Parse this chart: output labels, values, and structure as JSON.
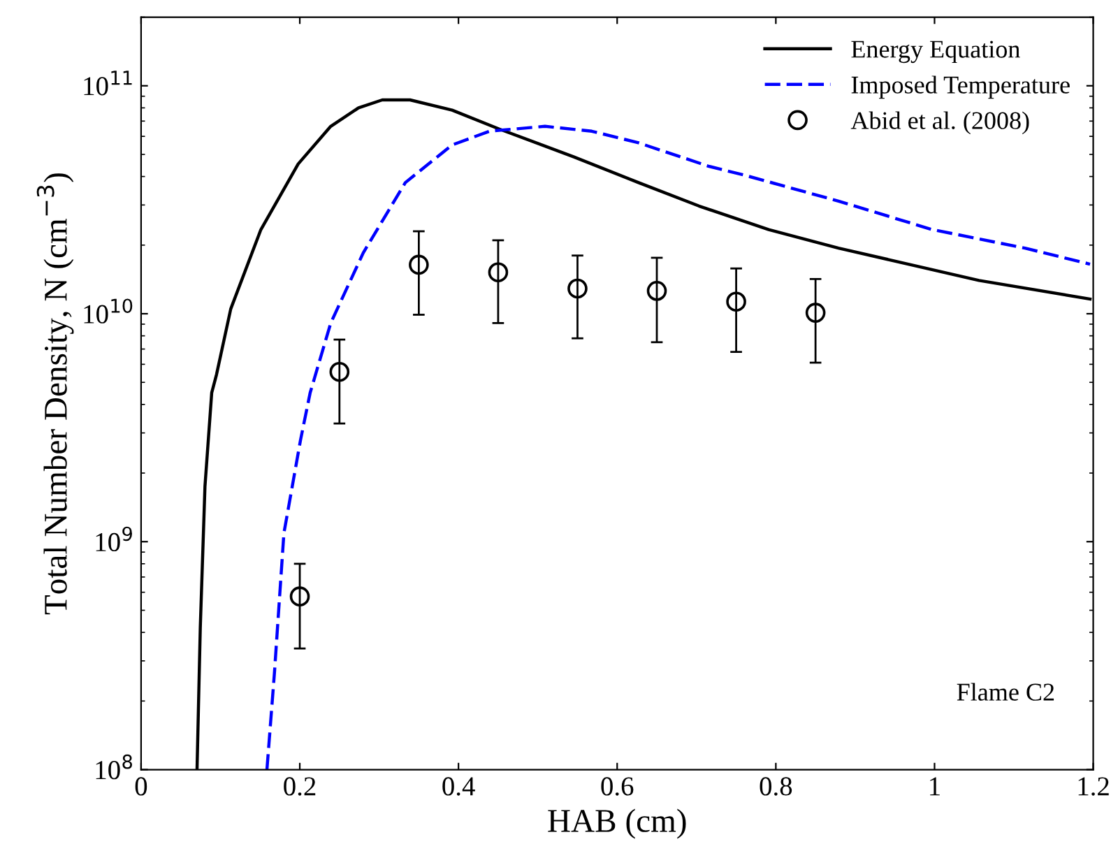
{
  "chart_data": {
    "type": "line",
    "xlabel": "HAB (cm)",
    "ylabel": "Total Number Density, N (cm$^{−3}$)",
    "xlim": [
      0,
      1.2
    ],
    "xticks": [
      0,
      0.2,
      0.4,
      0.6,
      0.8,
      1,
      1.2
    ],
    "ylim": [
      100000000.0,
      200000000000.0
    ],
    "yticks": [
      {
        "value": 100000000.0,
        "label": "10$^{8}$"
      },
      {
        "value": 1000000000.0,
        "label": "10$^{9}$"
      },
      {
        "value": 10000000000.0,
        "label": "10$^{10}$"
      },
      {
        "value": 100000000000.0,
        "label": "10$^{11}$"
      }
    ],
    "log": "y",
    "grid": false,
    "legend": "top right",
    "annotations": [
      "Flame C2"
    ],
    "series": [
      {
        "name": "Energy Equation",
        "color": "#000000",
        "line_style": "solid",
        "marker": "none",
        "x": [
          0.0705,
          0.0746,
          0.0805,
          0.089,
          0.095,
          0.113,
          0.151,
          0.198,
          0.239,
          0.274,
          0.304,
          0.339,
          0.392,
          0.451,
          0.545,
          0.627,
          0.703,
          0.791,
          0.879,
          0.967,
          1.056,
          1.196
        ],
        "values": [
          100000000.0,
          420000000.0,
          1750000000.0,
          4500000000.0,
          5400000000.0,
          10500000000.0,
          23400000000.0,
          45400000000.0,
          66400000000.0,
          80000000000.0,
          86700000000.0,
          86700000000.0,
          78200000000.0,
          64700000000.0,
          48800000000.0,
          37600000000.0,
          29700000000.0,
          23400000000.0,
          19400000000.0,
          16500000000.0,
          14000000000.0,
          11600000000.0
        ]
      },
      {
        "name": "Imposed Temperature",
        "color": "#0000ff",
        "line_style": "dashed",
        "marker": "none",
        "x": [
          0.1586,
          0.168,
          0.18,
          0.201,
          0.213,
          0.239,
          0.28,
          0.333,
          0.392,
          0.439,
          0.509,
          0.568,
          0.627,
          0.715,
          0.762,
          0.879,
          0.997,
          1.114,
          1.196
        ],
        "values": [
          100000000.0,
          264000000.0,
          1090000000.0,
          2800000000.0,
          4490000000.0,
          9100000000.0,
          18500000000.0,
          37600000000.0,
          55000000000.0,
          63200000000.0,
          66400000000.0,
          63200000000.0,
          56200000000.0,
          44400000000.0,
          40400000000.0,
          31200000000.0,
          23400000000.0,
          19400000000.0,
          16500000000.0
        ]
      },
      {
        "name": "Abid et al. (2008)",
        "type": "scatter",
        "color": "#000000",
        "marker": "circle",
        "x": [
          0.2,
          0.25,
          0.35,
          0.45,
          0.55,
          0.65,
          0.75,
          0.85
        ],
        "values": [
          575000000.0,
          5560000000.0,
          16400000000.0,
          15200000000.0,
          12900000000.0,
          12600000000.0,
          11300000000.0,
          10100000000.0
        ],
        "errors": [
          [
            340000000.0,
            800000000.0
          ],
          [
            3300000000.0,
            7700000000.0
          ],
          [
            9900000000.0,
            23000000000.0
          ],
          [
            9100000000.0,
            21000000000.0
          ],
          [
            7800000000.0,
            18000000000.0
          ],
          [
            7500000000.0,
            17600000000.0
          ],
          [
            6800000000.0,
            15800000000.0
          ],
          [
            6100000000.0,
            14200000000.0
          ]
        ]
      }
    ]
  }
}
